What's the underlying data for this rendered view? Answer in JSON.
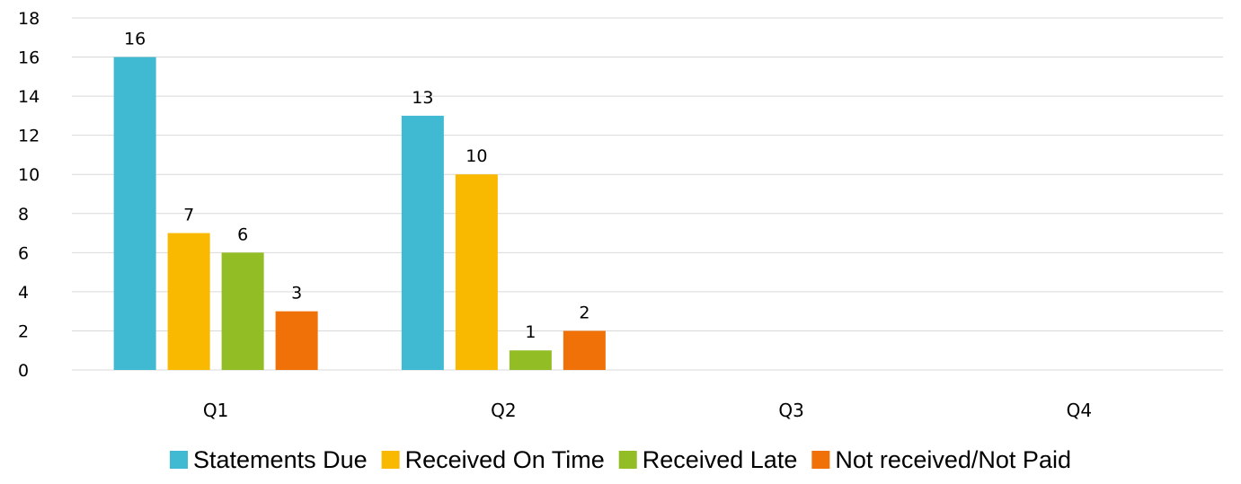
{
  "chart_data": {
    "type": "bar",
    "title": "",
    "xlabel": "",
    "ylabel": "",
    "categories": [
      "Q1",
      "Q2",
      "Q3",
      "Q4"
    ],
    "ylim": [
      0,
      18
    ],
    "yticks": [
      0,
      2,
      4,
      6,
      8,
      10,
      12,
      14,
      16,
      18
    ],
    "grid": true,
    "legend_position": "bottom",
    "series": [
      {
        "name": "Statements Due",
        "color": "#40b9d3",
        "values": [
          16,
          13,
          null,
          null
        ]
      },
      {
        "name": "Received On Time",
        "color": "#f9b900",
        "values": [
          7,
          10,
          null,
          null
        ]
      },
      {
        "name": "Received Late",
        "color": "#92bd24",
        "values": [
          6,
          1,
          null,
          null
        ]
      },
      {
        "name": "Not received/Not Paid",
        "color": "#ef7108",
        "values": [
          3,
          2,
          null,
          null
        ]
      }
    ]
  }
}
